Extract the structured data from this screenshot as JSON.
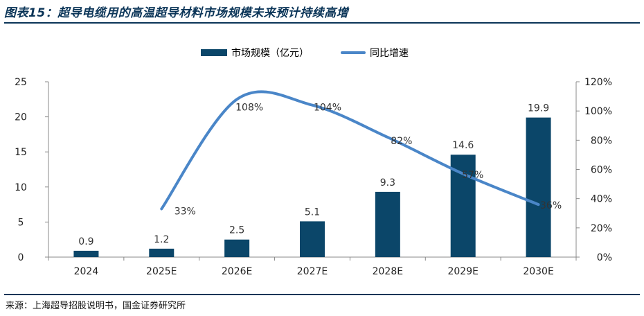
{
  "title": "图表15：超导电缆用的高温超导材料市场规模未来预计持续高增",
  "source": "来源：上海超导招股说明书，国金证券研究所",
  "colors": {
    "bar": "#0b4669",
    "line": "#4a86c8",
    "accent": "#0b3558"
  },
  "chart_data": {
    "type": "bar",
    "categories": [
      "2024",
      "2025E",
      "2026E",
      "2027E",
      "2028E",
      "2029E",
      "2030E"
    ],
    "series": [
      {
        "name": "市场规模（亿元）",
        "type": "bar",
        "axis": "left",
        "values": [
          0.9,
          1.2,
          2.5,
          5.1,
          9.3,
          14.6,
          19.9
        ],
        "labels": [
          "0.9",
          "1.2",
          "2.5",
          "5.1",
          "9.3",
          "14.6",
          "19.9"
        ]
      },
      {
        "name": "同比增速",
        "type": "line",
        "axis": "right",
        "values": [
          null,
          33,
          108,
          104,
          82,
          57,
          36
        ],
        "labels": [
          "",
          "33%",
          "108%",
          "104%",
          "82%",
          "57%",
          "36%"
        ]
      }
    ],
    "y_left": {
      "lim": [
        0,
        25
      ],
      "ticks": [
        "0",
        "5",
        "10",
        "15",
        "20",
        "25"
      ]
    },
    "y_right": {
      "lim": [
        0,
        120
      ],
      "ticks": [
        "0%",
        "20%",
        "40%",
        "60%",
        "80%",
        "100%",
        "120%"
      ]
    },
    "legend_position": "top-center",
    "grid": false
  }
}
